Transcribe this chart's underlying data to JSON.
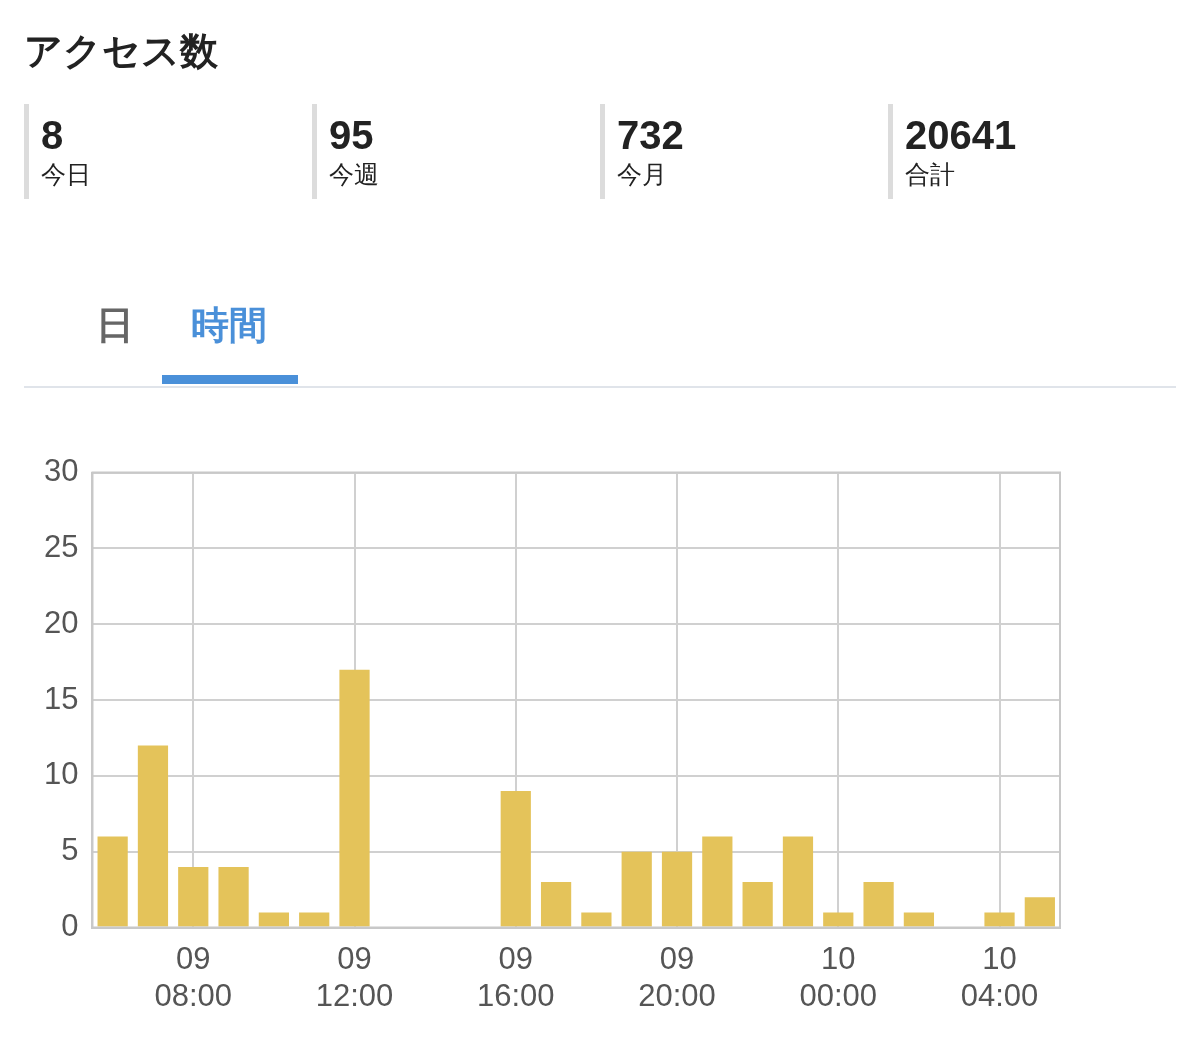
{
  "chart_data": [
    {
      "type": "other",
      "title": "アクセス数",
      "annotations": [
        "8",
        "今日",
        "95",
        "今週",
        "732",
        "今月",
        "20641",
        "合計"
      ]
    },
    {
      "type": "bar",
      "annotations": [
        "日",
        "時間"
      ],
      "categories": [
        null,
        null,
        "09\n08:00",
        null,
        null,
        null,
        "09\n12:00",
        null,
        null,
        null,
        "09\n16:00",
        null,
        null,
        null,
        "09\n20:00",
        null,
        null,
        null,
        "10\n00:00",
        null,
        null,
        null,
        "10\n04:00",
        null
      ],
      "values": [
        6,
        12,
        4,
        4,
        1,
        1,
        17,
        0,
        0,
        0,
        9,
        3,
        1,
        5,
        5,
        6,
        3,
        6,
        1,
        3,
        1,
        0,
        1,
        2
      ],
      "color": "#e4c35a",
      "ylim": [
        0,
        30
      ],
      "yticks": [
        0,
        5,
        10,
        15,
        20,
        25,
        30
      ],
      "grid": true,
      "legend": false
    }
  ]
}
